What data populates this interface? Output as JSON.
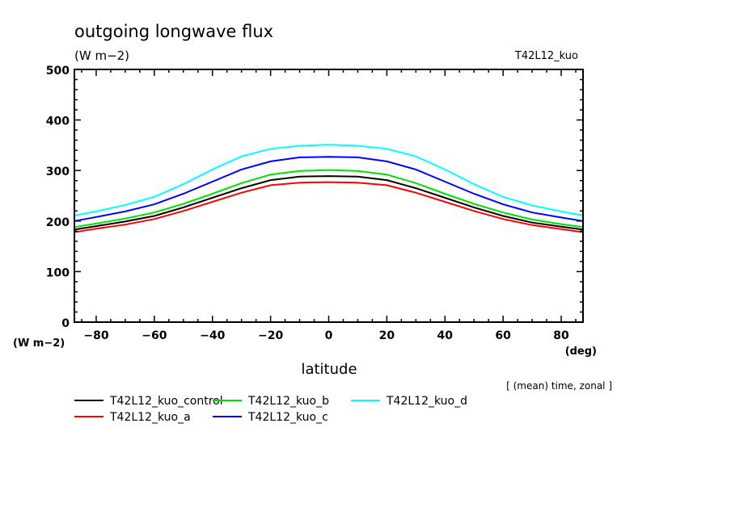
{
  "chart_data": {
    "type": "line",
    "title": "outgoing longwave flux",
    "units_label": "(W m−2)",
    "experiment_label": "T42L12_kuo",
    "xlabel": "latitude",
    "xunit": "(deg)",
    "yunit": "(W m−2)",
    "note": "[ (mean) time, zonal ]",
    "xlim": [
      -87.5,
      87.5
    ],
    "ylim": [
      0,
      500
    ],
    "xticks": [
      -80,
      -60,
      -40,
      -20,
      0,
      20,
      40,
      60,
      80
    ],
    "xtick_labels": [
      "−80",
      "−60",
      "−40",
      "−20",
      "0",
      "20",
      "40",
      "60",
      "80"
    ],
    "yticks": [
      0,
      100,
      200,
      300,
      400,
      500
    ],
    "ytick_labels": [
      "0",
      "100",
      "200",
      "300",
      "400",
      "500"
    ],
    "x": [
      -87.5,
      -80,
      -70,
      -60,
      -50,
      -40,
      -30,
      -20,
      -10,
      0,
      10,
      20,
      30,
      40,
      50,
      60,
      70,
      80,
      87.5
    ],
    "series": [
      {
        "name": "T42L12_kuo_control",
        "color": "#000000",
        "values": [
          183,
          190,
          199,
          210,
          227,
          246,
          265,
          281,
          288,
          289,
          288,
          281,
          265,
          246,
          227,
          210,
          197,
          189,
          183
        ]
      },
      {
        "name": "T42L12_kuo_a",
        "color": "#ff0000",
        "values": [
          178,
          185,
          193,
          204,
          220,
          238,
          256,
          271,
          276,
          277,
          276,
          271,
          256,
          238,
          220,
          204,
          192,
          184,
          178
        ]
      },
      {
        "name": "T42L12_kuo_b",
        "color": "#00e000",
        "values": [
          188,
          195,
          205,
          217,
          234,
          254,
          275,
          292,
          299,
          301,
          299,
          292,
          275,
          254,
          234,
          217,
          203,
          194,
          188
        ]
      },
      {
        "name": "T42L12_kuo_c",
        "color": "#0000ff",
        "values": [
          200,
          208,
          219,
          233,
          254,
          278,
          302,
          318,
          326,
          327,
          326,
          318,
          302,
          278,
          254,
          233,
          217,
          207,
          200
        ]
      },
      {
        "name": "T42L12_kuo_d",
        "color": "#00ffff",
        "values": [
          211,
          219,
          232,
          248,
          273,
          302,
          328,
          343,
          349,
          351,
          349,
          343,
          328,
          302,
          273,
          248,
          231,
          219,
          211
        ]
      }
    ],
    "legend": {
      "placement": "bottom-left",
      "rows": [
        [
          "T42L12_kuo_control",
          "T42L12_kuo_b",
          "T42L12_kuo_d"
        ],
        [
          "T42L12_kuo_a",
          "T42L12_kuo_c"
        ]
      ]
    },
    "grid": false
  }
}
